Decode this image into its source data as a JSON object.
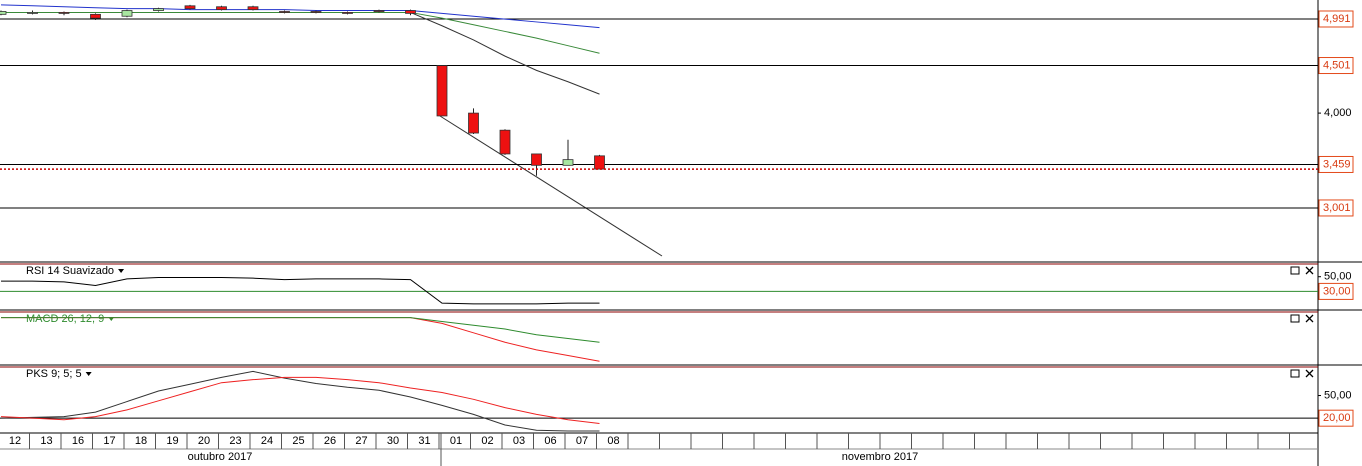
{
  "chart_data": [
    {
      "type": "candlestick",
      "categories": [
        "12",
        "13",
        "16",
        "17",
        "18",
        "19",
        "20",
        "23",
        "24",
        "25",
        "26",
        "27",
        "30",
        "31",
        "01",
        "02",
        "03",
        "06",
        "07",
        "08"
      ],
      "month_labels": [
        "outubro 2017",
        "novembro 2017"
      ],
      "open": [
        5.04,
        5.06,
        5.06,
        5.04,
        5.02,
        5.08,
        5.13,
        5.12,
        5.12,
        5.07,
        5.07,
        5.06,
        5.08,
        5.08,
        4.5,
        4.0,
        3.82,
        3.57,
        3.45,
        3.55
      ],
      "high": [
        5.08,
        5.08,
        5.07,
        5.05,
        5.09,
        5.11,
        5.14,
        5.13,
        5.13,
        5.08,
        5.08,
        5.07,
        5.09,
        5.09,
        4.5,
        4.05,
        3.83,
        3.57,
        3.72,
        3.56
      ],
      "low": [
        5.03,
        5.04,
        5.03,
        4.98,
        5.01,
        5.07,
        5.09,
        5.08,
        5.08,
        5.05,
        5.05,
        5.04,
        5.06,
        5.03,
        3.97,
        3.78,
        3.56,
        3.34,
        3.45,
        3.41
      ],
      "close": [
        5.07,
        5.06,
        5.05,
        5.0,
        5.08,
        5.1,
        5.1,
        5.09,
        5.09,
        5.06,
        5.06,
        5.05,
        5.07,
        5.05,
        3.97,
        3.79,
        3.57,
        3.45,
        3.51,
        3.41
      ],
      "up_color": "#a8e6a0",
      "down_color": "#ee1111",
      "series": [
        {
          "color": "#2233cc",
          "values": [
            5.14,
            5.13,
            5.12,
            5.11,
            5.1,
            5.1,
            5.09,
            5.09,
            5.09,
            5.09,
            5.08,
            5.08,
            5.08,
            5.08,
            5.05,
            5.02,
            4.99,
            4.96,
            4.93,
            4.9
          ]
        },
        {
          "color": "#3a8a3a",
          "values": [
            5.06,
            5.06,
            5.06,
            5.06,
            5.06,
            5.06,
            5.06,
            5.06,
            5.06,
            5.06,
            5.06,
            5.06,
            5.06,
            5.06,
            5.0,
            4.93,
            4.86,
            4.79,
            4.71,
            4.63
          ]
        },
        {
          "color": "#333333",
          "values": [
            null,
            null,
            null,
            null,
            null,
            null,
            null,
            null,
            null,
            null,
            null,
            null,
            null,
            5.06,
            4.92,
            4.77,
            4.6,
            4.45,
            4.33,
            4.2
          ]
        }
      ],
      "ylim": [
        2.432,
        5.191
      ],
      "yticks": [
        {
          "value": 4.0,
          "label": "4,000"
        }
      ],
      "levels": [
        {
          "value": 4.991,
          "label": "4,991"
        },
        {
          "value": 4.501,
          "label": "4,501"
        },
        {
          "value": 3.459,
          "label": "3,459"
        },
        {
          "value": 3.001,
          "label": "3,001"
        }
      ],
      "level_color": "#000000"
    },
    {
      "type": "line",
      "title": "RSI 14 Suavizado",
      "series": [
        {
          "color": "#000000",
          "values": [
            44,
            44,
            43,
            38,
            47,
            49,
            49,
            49,
            48,
            46,
            47,
            47,
            47,
            46,
            14,
            13,
            13,
            13,
            14,
            14
          ]
        }
      ],
      "ylim": [
        4.7,
        67.3
      ],
      "yticks": [
        {
          "value": 50,
          "label": "50,00"
        }
      ],
      "levels": [
        {
          "value": 30,
          "label": "30,00"
        }
      ],
      "level_color": "#2e8b2e"
    },
    {
      "type": "line",
      "title": "MACD 26, 12, 9",
      "title_color": "#2e8b2e",
      "series": [
        {
          "color": "#ee2222",
          "values": [
            0,
            0,
            0,
            0,
            0,
            0,
            0,
            0,
            0,
            0,
            0,
            0,
            0,
            0,
            -0.03,
            -0.08,
            -0.13,
            -0.17,
            -0.2,
            -0.23
          ]
        },
        {
          "color": "#2e8b2e",
          "values": [
            0,
            0,
            0,
            0,
            0,
            0,
            0,
            0,
            0,
            0,
            0,
            0,
            0,
            0,
            -0.02,
            -0.04,
            -0.06,
            -0.09,
            -0.11,
            -0.13
          ]
        }
      ],
      "ylim": [
        -0.25,
        0.03
      ]
    },
    {
      "type": "line",
      "title": "PKS 9; 5; 5",
      "series": [
        {
          "color": "#333333",
          "values": [
            20,
            21,
            22,
            28,
            42,
            56,
            65,
            74,
            82,
            73,
            66,
            61,
            57,
            48,
            37,
            25,
            11,
            4,
            3,
            3
          ]
        },
        {
          "color": "#ee2222",
          "values": [
            22,
            20,
            18,
            22,
            31,
            43,
            55,
            67,
            71,
            74,
            74,
            71,
            67,
            60,
            54,
            45,
            34,
            25,
            18,
            13
          ]
        }
      ],
      "ylim": [
        1.7,
        87.8
      ],
      "yticks": [
        {
          "value": 50,
          "label": "50,00"
        }
      ],
      "levels": [
        {
          "value": 20,
          "label": "20,00"
        }
      ],
      "level_color": "#000000"
    }
  ]
}
